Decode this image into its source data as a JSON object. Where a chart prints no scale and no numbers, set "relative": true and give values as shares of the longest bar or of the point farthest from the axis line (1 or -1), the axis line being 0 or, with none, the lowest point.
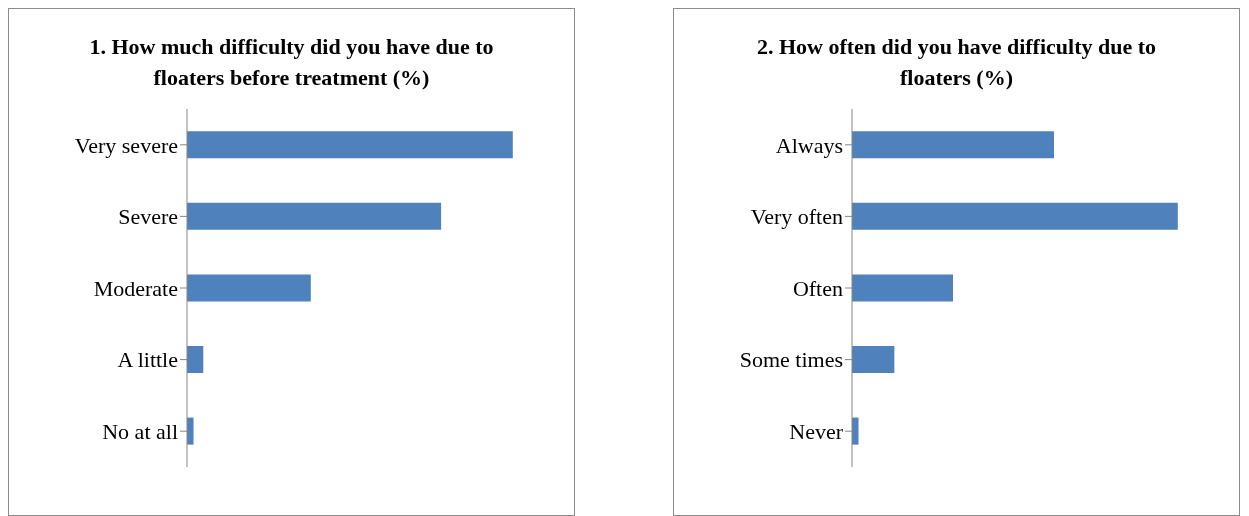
{
  "chart_data": [
    {
      "type": "bar",
      "orientation": "horizontal",
      "relative": true,
      "title": "1. How much difficulty did you have due to floaters before treatment (%)",
      "categories": [
        "Very severe",
        "Severe",
        "Moderate",
        "A little",
        "No at all"
      ],
      "color": "#4f81bd",
      "values": [
        1,
        0.78,
        0.38,
        0.05,
        0.02
      ]
    },
    {
      "type": "bar",
      "orientation": "horizontal",
      "relative": true,
      "title": "2. How often did you have difficulty due to floaters (%)",
      "categories": [
        "Always",
        "Very often",
        "Often",
        "Some times",
        "Never"
      ],
      "color": "#4f81bd",
      "values": [
        0.62,
        1,
        0.31,
        0.13,
        0.02
      ]
    }
  ]
}
